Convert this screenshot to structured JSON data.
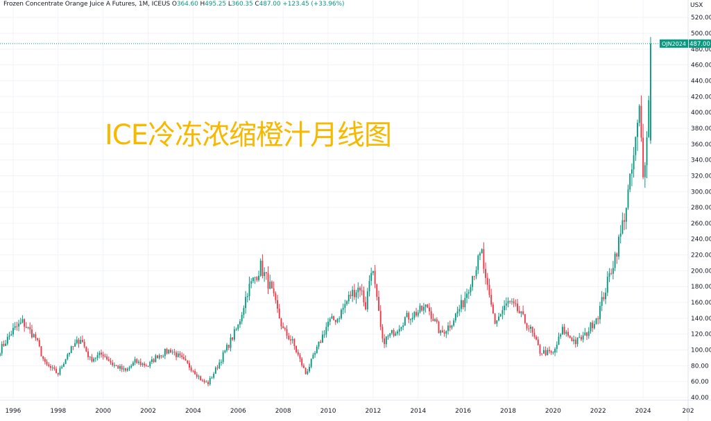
{
  "legend": {
    "symbol": "Frozen Concentrate Orange Juice A Futures, 1M, ICEUS",
    "o_label": "O",
    "o": "364.60",
    "h_label": "H",
    "h": "495.25",
    "l_label": "L",
    "l": "360.35",
    "c_label": "C",
    "c": "487.00",
    "change": "+123.45 (+33.96%)"
  },
  "overlay_title": "ICE冷冻浓缩橙汁月线图",
  "currency": "USX",
  "price_tag": {
    "symbol": "OJN2024",
    "value": "487.00"
  },
  "colors": {
    "up": "#089981",
    "down": "#f23645",
    "title": "#f6b900",
    "grid": "#f0f3fa",
    "tag": "#089981"
  },
  "chart_data": {
    "type": "candlestick",
    "title": "",
    "ylim": [
      40,
      520
    ],
    "y_ticks": [
      "40.00",
      "60.00",
      "80.00",
      "100.00",
      "120.00",
      "140.00",
      "160.00",
      "180.00",
      "200.00",
      "220.00",
      "240.00",
      "260.00",
      "280.00",
      "300.00",
      "320.00",
      "340.00",
      "360.00",
      "380.00",
      "400.00",
      "420.00",
      "440.00",
      "460.00",
      "480.00",
      "500.00",
      "520.00"
    ],
    "x_ticks": [
      "1996",
      "1998",
      "2000",
      "2002",
      "2004",
      "2006",
      "2008",
      "2010",
      "2012",
      "2014",
      "2016",
      "2018",
      "2020",
      "2022",
      "2024",
      "202"
    ],
    "x_range": [
      "1995-06",
      "2026-01"
    ],
    "last_price": 487.0,
    "anchors": [
      [
        "1995-06",
        100
      ],
      [
        "1996-01",
        125
      ],
      [
        "1996-06",
        135
      ],
      [
        "1997-01",
        115
      ],
      [
        "1997-06",
        82
      ],
      [
        "1998-01",
        70
      ],
      [
        "1998-06",
        95
      ],
      [
        "1999-01",
        115
      ],
      [
        "1999-06",
        88
      ],
      [
        "2000-01",
        95
      ],
      [
        "2000-06",
        82
      ],
      [
        "2001-01",
        73
      ],
      [
        "2001-06",
        85
      ],
      [
        "2002-01",
        80
      ],
      [
        "2002-06",
        93
      ],
      [
        "2003-01",
        100
      ],
      [
        "2003-06",
        90
      ],
      [
        "2004-01",
        75
      ],
      [
        "2004-06",
        60
      ],
      [
        "2004-09",
        58
      ],
      [
        "2005-01",
        75
      ],
      [
        "2005-06",
        98
      ],
      [
        "2006-01",
        130
      ],
      [
        "2006-06",
        175
      ],
      [
        "2007-01",
        205
      ],
      [
        "2007-06",
        180
      ],
      [
        "2008-01",
        125
      ],
      [
        "2008-06",
        110
      ],
      [
        "2009-01",
        70
      ],
      [
        "2009-06",
        95
      ],
      [
        "2010-01",
        135
      ],
      [
        "2010-06",
        140
      ],
      [
        "2011-01",
        170
      ],
      [
        "2011-06",
        180
      ],
      [
        "2011-09",
        155
      ],
      [
        "2011-12",
        205
      ],
      [
        "2012-01",
        195
      ],
      [
        "2012-06",
        110
      ],
      [
        "2013-01",
        125
      ],
      [
        "2013-06",
        140
      ],
      [
        "2014-01",
        148
      ],
      [
        "2014-06",
        155
      ],
      [
        "2015-01",
        120
      ],
      [
        "2015-06",
        132
      ],
      [
        "2016-01",
        160
      ],
      [
        "2016-06",
        195
      ],
      [
        "2016-11",
        222
      ],
      [
        "2017-01",
        185
      ],
      [
        "2017-06",
        135
      ],
      [
        "2018-01",
        160
      ],
      [
        "2018-06",
        150
      ],
      [
        "2019-01",
        125
      ],
      [
        "2019-06",
        98
      ],
      [
        "2020-01",
        95
      ],
      [
        "2020-06",
        125
      ],
      [
        "2021-01",
        110
      ],
      [
        "2021-06",
        118
      ],
      [
        "2022-01",
        145
      ],
      [
        "2022-06",
        185
      ],
      [
        "2023-01",
        245
      ],
      [
        "2023-06",
        310
      ],
      [
        "2023-09",
        360
      ],
      [
        "2023-11",
        400
      ],
      [
        "2024-01",
        330
      ],
      [
        "2024-03",
        365
      ],
      [
        "2024-05",
        487
      ]
    ]
  }
}
